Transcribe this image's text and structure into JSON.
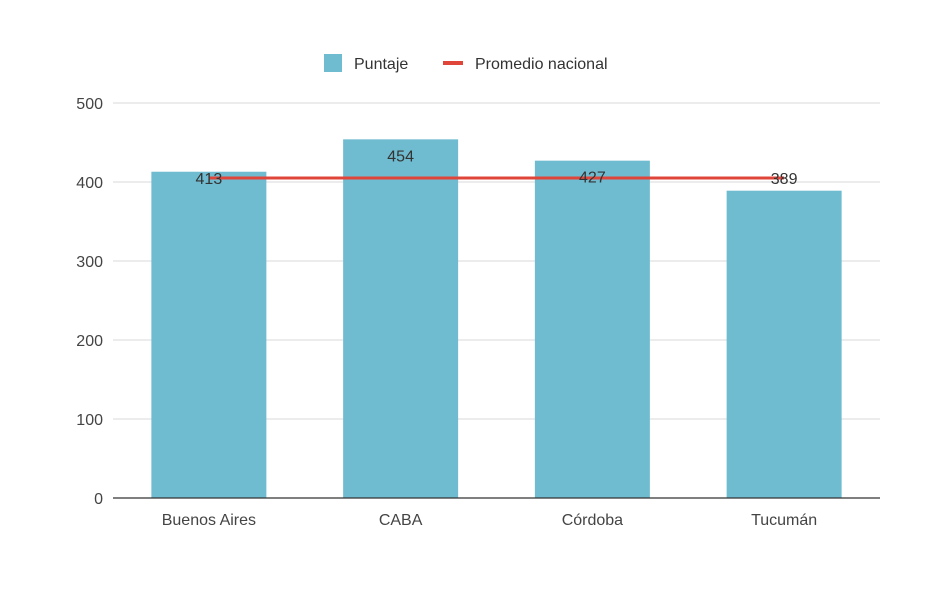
{
  "chart_data": {
    "type": "bar",
    "categories": [
      "Buenos Aires",
      "CABA",
      "Córdoba",
      "Tucumán"
    ],
    "series": [
      {
        "name": "Puntaje",
        "type": "bar",
        "values": [
          413,
          454,
          427,
          389
        ],
        "color": "#6fbcd1"
      },
      {
        "name": "Promedio nacional",
        "type": "line",
        "values": [
          405,
          405,
          405,
          405
        ],
        "color": "#e0453a"
      }
    ],
    "data_labels": [
      "413",
      "454",
      "427",
      "389"
    ],
    "ylim": [
      0,
      500
    ],
    "yticks": [
      0,
      100,
      200,
      300,
      400,
      500
    ],
    "grid": true,
    "legend_position": "top-center",
    "title": "",
    "xlabel": "",
    "ylabel": ""
  }
}
